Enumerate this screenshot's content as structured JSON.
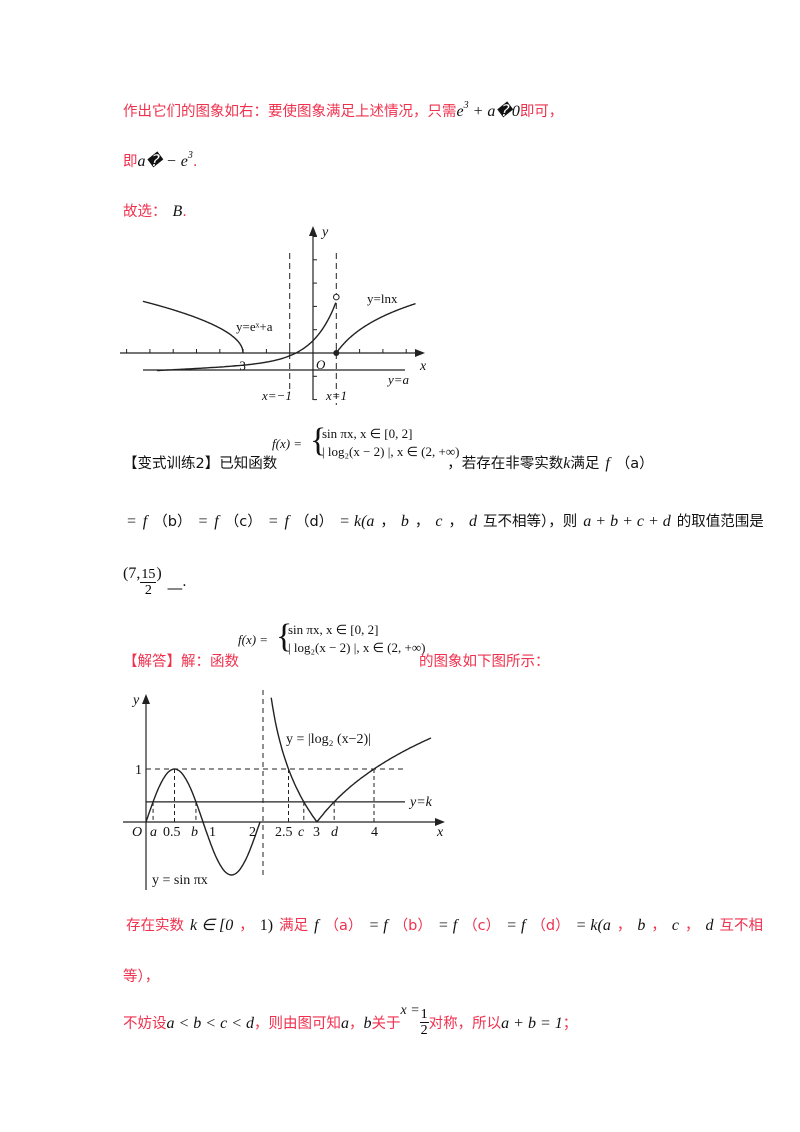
{
  "line1": {
    "text": "作出它们的图象如右：要使图象满足上述情况，只需",
    "math_e": "e",
    "math_sup": "3",
    "math_rest": "+ a�0",
    "text_end": "即可，"
  },
  "line2": {
    "text": "即",
    "math": "a� − e",
    "math_sup": "3",
    "text_end": "."
  },
  "line3": {
    "text": "故选：",
    "math": "B",
    "text_end": "."
  },
  "graph1": {
    "labels": {
      "y": "y",
      "x": "x",
      "origin": "O",
      "minus3": "−3",
      "curve_exp": "y=eˣ+a",
      "curve_ln": "y=lnx",
      "line_a": "y=a",
      "asym_left": "x=−1",
      "asym_right": "x=1"
    }
  },
  "problem": {
    "heading": "【变式训练2】已知函数",
    "func_lhs": "f(x) =",
    "case1": "sin πx, x ∈ [0, 2]",
    "case2": "| log₂(x − 2) |, x ∈ (2, +∞)",
    "text_after": "，若存在非零实数",
    "k": "k",
    "text_satisfy": "满足",
    "line2": [
      "=",
      "f",
      "（b）",
      "=",
      "f",
      "（c）",
      "=",
      "f",
      "（d）",
      "= k(a",
      "，",
      "b",
      "，",
      "c",
      "，",
      "d",
      "互不相等），则",
      "a + b + c + d",
      "的取值范围是"
    ],
    "f": "f",
    "fa": "（a）",
    "answer_prefix": "(7,",
    "answer_num": "15",
    "answer_den": "2",
    "answer_suffix": ")",
    "blank": "__."
  },
  "solution": {
    "heading": "【解答】解：函数",
    "func_lhs": "f(x) =",
    "case1": "sin πx, x ∈ [0, 2]",
    "case2": "| log₂(x − 2) |, x ∈ (2, +∞)",
    "text_after": "的图象如下图所示："
  },
  "graph2": {
    "labels": {
      "y": "y",
      "x": "x",
      "origin": "O",
      "one_y": "1",
      "a": "a",
      "half": "0.5",
      "b": "b",
      "one": "1",
      "two": "2",
      "two_half": "2.5",
      "c": "c",
      "three": "3",
      "d": "d",
      "four": "4",
      "line_k": "y=k",
      "curve_log": "y = |log₂ (x−2)|",
      "curve_sin": "y = sin πx"
    }
  },
  "sol_line1": [
    "存在实数",
    "k ∈ [0",
    "，",
    "1)",
    "满足",
    "f",
    "（a）",
    "= f",
    "（b）",
    "= f",
    "（c）",
    "= f",
    "（d）",
    "= k(a",
    "，",
    "b",
    "，",
    "c",
    "，",
    "d",
    "互不相"
  ],
  "sol_line2": "等），",
  "sol_line3": {
    "t1": "不妨设",
    "m1": "a < b < c < d",
    "t2": "，则由图可知",
    "m2": "a",
    "t3": "，",
    "m3": "b",
    "t4": "关于",
    "frac_lhs": "x =",
    "num": "1",
    "den": "2",
    "t5": "对称，所以",
    "m4": "a + b = 1",
    "t6": "；"
  },
  "colors": {
    "red_text": "#f0314e",
    "black_text": "#111111"
  }
}
